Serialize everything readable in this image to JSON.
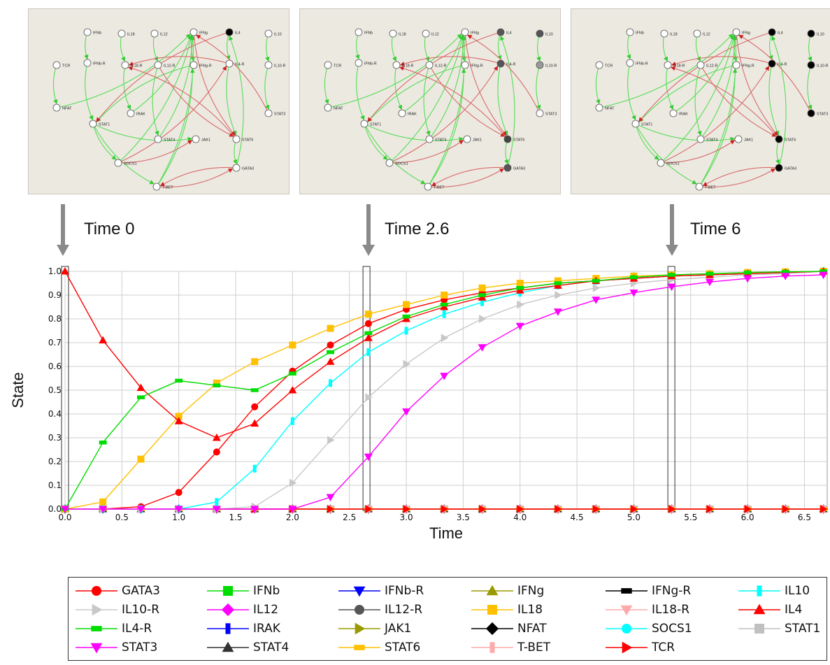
{
  "panels": [
    {
      "time_label": "Time 0",
      "active_nodes": {
        "IL4": "#000000"
      }
    },
    {
      "time_label": "Time 2.6",
      "active_nodes": {
        "IL4": "#555555",
        "IL10": "#555555",
        "IL4-R": "#555555",
        "IL10-R": "#999999",
        "STAT6": "#444444",
        "GATA3": "#555555"
      }
    },
    {
      "time_label": "Time 6",
      "active_nodes": {
        "IL4": "#000000",
        "IL10": "#000000",
        "IL4-R": "#000000",
        "IL10-R": "#000000",
        "STAT3": "#000000",
        "STAT6": "#000000",
        "GATA3": "#000000"
      }
    }
  ],
  "network": {
    "nodes": [
      "IFNb",
      "IL18",
      "IL12",
      "IFNg",
      "IL4",
      "IL10",
      "TCR",
      "IFNb-R",
      "IL18-R",
      "IL12-R",
      "IFNg-R",
      "IL4-R",
      "IL10-R",
      "NFAT",
      "IRAK",
      "STAT3",
      "STAT1",
      "STAT4",
      "JAK1",
      "STAT6",
      "SOCS1",
      "GATA3",
      "T-BET"
    ],
    "node_labels": {
      "IFNb": "IFNb",
      "IL18": "IL18",
      "IL12": "IL12",
      "IFNg": "IFNg",
      "IL4": "IL4",
      "IL10": "IL10",
      "TCR": "TCR",
      "IFNb-R": "IFNb-R",
      "IL18-R": "IL18-R",
      "IL12-R": "IL12-R",
      "IFNg-R": "IFNg-R",
      "IL4-R": "IL4-R",
      "IL10-R": "IL10-R",
      "NFAT": "NFAT",
      "IRAK": "IRAK",
      "STAT3": "STAT3",
      "STAT1": "STAT1",
      "STAT4": "STAT4",
      "JAK1": "JAK1",
      "STAT6": "STAT6",
      "SOCS1": "SOCS1",
      "GATA3": "GATA3",
      "T-BET": "T-BET"
    },
    "activating_edges": [
      [
        "IFNb",
        "IFNb-R"
      ],
      [
        "IL18",
        "IL18-R"
      ],
      [
        "IL12",
        "IL12-R"
      ],
      [
        "IFNg",
        "IFNg-R"
      ],
      [
        "IL4",
        "IL4-R"
      ],
      [
        "IL10",
        "IL10-R"
      ],
      [
        "TCR",
        "NFAT"
      ],
      [
        "IFNb-R",
        "STAT1"
      ],
      [
        "IL18-R",
        "IRAK"
      ],
      [
        "IL12-R",
        "STAT4"
      ],
      [
        "IFNg-R",
        "STAT1"
      ],
      [
        "IL4-R",
        "STAT6"
      ],
      [
        "IL10-R",
        "STAT3"
      ],
      [
        "STAT1",
        "SOCS1"
      ],
      [
        "STAT1",
        "T-BET"
      ],
      [
        "STAT4",
        "IFNg"
      ],
      [
        "STAT6",
        "GATA3"
      ],
      [
        "T-BET",
        "IFNg"
      ],
      [
        "IRAK",
        "IFNg"
      ],
      [
        "NFAT",
        "IFNg"
      ],
      [
        "STAT1",
        "JAK1"
      ],
      [
        "GATA3",
        "IL4"
      ],
      [
        "T-BET",
        "IFNg-R"
      ],
      [
        "SOCS1",
        "IFNg"
      ]
    ],
    "inhibiting_edges": [
      [
        "IFNg",
        "STAT6"
      ],
      [
        "IL4",
        "STAT1"
      ],
      [
        "IL4-R",
        "IL18-R"
      ],
      [
        "GATA3",
        "T-BET"
      ],
      [
        "T-BET",
        "GATA3"
      ],
      [
        "SOCS1",
        "JAK1"
      ],
      [
        "SOCS1",
        "IL4-R"
      ],
      [
        "IL12-R",
        "STAT6"
      ],
      [
        "STAT6",
        "IL18-R"
      ],
      [
        "STAT3",
        "IFNg"
      ]
    ]
  },
  "chart_data": {
    "type": "line",
    "xlabel": "Time",
    "ylabel": "State",
    "xlim": [
      0,
      6.7
    ],
    "ylim": [
      0,
      1.0
    ],
    "x_ticks": [
      "0.0",
      "0.5",
      "1.0",
      "1.5",
      "2.0",
      "2.5",
      "3.0",
      "3.5",
      "4.0",
      "4.5",
      "5.0",
      "5.5",
      "6.0",
      "6.5"
    ],
    "y_ticks": [
      "0.0",
      "0.1",
      "0.2",
      "0.3",
      "0.4",
      "0.5",
      "0.6",
      "0.7",
      "0.8",
      "0.9",
      "1.0"
    ],
    "grid": true,
    "x": [
      0,
      0.333,
      0.667,
      1.0,
      1.333,
      1.667,
      2.0,
      2.333,
      2.667,
      3.0,
      3.333,
      3.667,
      4.0,
      4.333,
      4.667,
      5.0,
      5.333,
      5.667,
      6.0,
      6.333,
      6.667
    ],
    "highlight_times": [
      0,
      2.65,
      5.33
    ],
    "series": [
      {
        "name": "GATA3",
        "color": "#ff0000",
        "marker": "circle",
        "values": [
          0,
          0,
          0.01,
          0.07,
          0.24,
          0.43,
          0.58,
          0.69,
          0.78,
          0.84,
          0.88,
          0.91,
          0.93,
          0.95,
          0.96,
          0.97,
          0.98,
          0.985,
          0.99,
          0.995,
          1.0
        ]
      },
      {
        "name": "IFNb",
        "color": "#00dd00",
        "marker": "square",
        "values": [
          0,
          0,
          0,
          0,
          0,
          0,
          0,
          0,
          0,
          0,
          0,
          0,
          0,
          0,
          0,
          0,
          0,
          0,
          0,
          0,
          0
        ]
      },
      {
        "name": "IFNb-R",
        "color": "#0000ff",
        "marker": "triangle-down",
        "values": [
          0,
          0,
          0,
          0,
          0,
          0,
          0,
          0,
          0,
          0,
          0,
          0,
          0,
          0,
          0,
          0,
          0,
          0,
          0,
          0,
          0
        ]
      },
      {
        "name": "IFNg",
        "color": "#999900",
        "marker": "triangle-up",
        "values": [
          0,
          0,
          0,
          0,
          0,
          0,
          0,
          0,
          0,
          0,
          0,
          0,
          0,
          0,
          0,
          0,
          0,
          0,
          0,
          0,
          0
        ]
      },
      {
        "name": "IFNg-R",
        "color": "#000000",
        "marker": "dash",
        "values": [
          0,
          0,
          0,
          0,
          0,
          0,
          0,
          0,
          0,
          0,
          0,
          0,
          0,
          0,
          0,
          0,
          0,
          0,
          0,
          0,
          0
        ]
      },
      {
        "name": "IL10",
        "color": "#00ffff",
        "marker": "tick",
        "values": [
          0,
          0,
          0,
          0,
          0.03,
          0.17,
          0.37,
          0.53,
          0.66,
          0.75,
          0.82,
          0.87,
          0.91,
          0.94,
          0.96,
          0.97,
          0.98,
          0.985,
          0.99,
          0.995,
          1.0
        ]
      },
      {
        "name": "IL10-R",
        "color": "#c8c8c8",
        "marker": "triangle-right",
        "values": [
          0,
          0,
          0,
          0,
          0,
          0.01,
          0.11,
          0.29,
          0.47,
          0.61,
          0.72,
          0.8,
          0.86,
          0.9,
          0.93,
          0.95,
          0.965,
          0.975,
          0.985,
          0.99,
          1.0
        ]
      },
      {
        "name": "IL12",
        "color": "#ff00ff",
        "marker": "diamond",
        "values": [
          0,
          0,
          0,
          0,
          0,
          0,
          0,
          0,
          0,
          0,
          0,
          0,
          0,
          0,
          0,
          0,
          0,
          0,
          0,
          0,
          0
        ]
      },
      {
        "name": "IL12-R",
        "color": "#555555",
        "marker": "circle",
        "values": [
          0,
          0,
          0,
          0,
          0,
          0,
          0,
          0,
          0,
          0,
          0,
          0,
          0,
          0,
          0,
          0,
          0,
          0,
          0,
          0,
          0
        ]
      },
      {
        "name": "IL18",
        "color": "#ffc000",
        "marker": "square",
        "values": [
          0,
          0.03,
          0.21,
          0.39,
          0.53,
          0.62,
          0.69,
          0.76,
          0.82,
          0.86,
          0.9,
          0.93,
          0.95,
          0.96,
          0.97,
          0.98,
          0.985,
          0.99,
          0.995,
          0.998,
          1.0
        ]
      },
      {
        "name": "IL18-R",
        "color": "#ffaaaa",
        "marker": "triangle-down",
        "values": [
          0,
          0,
          0,
          0,
          0,
          0,
          0,
          0,
          0,
          0,
          0,
          0,
          0,
          0,
          0,
          0,
          0,
          0,
          0,
          0,
          0
        ]
      },
      {
        "name": "IL4",
        "color": "#ff0000",
        "marker": "triangle-up",
        "values": [
          1.0,
          0.71,
          0.51,
          0.37,
          0.3,
          0.36,
          0.5,
          0.62,
          0.72,
          0.8,
          0.85,
          0.89,
          0.92,
          0.94,
          0.96,
          0.97,
          0.98,
          0.985,
          0.99,
          0.995,
          1.0
        ]
      },
      {
        "name": "IL4-R",
        "color": "#00dd00",
        "marker": "dash",
        "values": [
          0,
          0.28,
          0.47,
          0.54,
          0.52,
          0.5,
          0.57,
          0.66,
          0.74,
          0.81,
          0.86,
          0.9,
          0.93,
          0.95,
          0.96,
          0.975,
          0.985,
          0.99,
          0.995,
          0.998,
          1.0
        ]
      },
      {
        "name": "IRAK",
        "color": "#0000ff",
        "marker": "tick",
        "values": [
          0,
          0,
          0,
          0,
          0,
          0,
          0,
          0,
          0,
          0,
          0,
          0,
          0,
          0,
          0,
          0,
          0,
          0,
          0,
          0,
          0
        ]
      },
      {
        "name": "JAK1",
        "color": "#999900",
        "marker": "triangle-right",
        "values": [
          0,
          0,
          0,
          0,
          0,
          0,
          0,
          0,
          0,
          0,
          0,
          0,
          0,
          0,
          0,
          0,
          0,
          0,
          0,
          0,
          0
        ]
      },
      {
        "name": "NFAT",
        "color": "#000000",
        "marker": "diamond",
        "values": [
          0,
          0,
          0,
          0,
          0,
          0,
          0,
          0,
          0,
          0,
          0,
          0,
          0,
          0,
          0,
          0,
          0,
          0,
          0,
          0,
          0
        ]
      },
      {
        "name": "SOCS1",
        "color": "#00ffff",
        "marker": "circle",
        "values": [
          0,
          0,
          0,
          0,
          0,
          0,
          0,
          0,
          0,
          0,
          0,
          0,
          0,
          0,
          0,
          0,
          0,
          0,
          0,
          0,
          0
        ]
      },
      {
        "name": "STAT1",
        "color": "#c0c0c0",
        "marker": "square",
        "values": [
          0,
          0,
          0,
          0,
          0,
          0,
          0,
          0,
          0,
          0,
          0,
          0,
          0,
          0,
          0,
          0,
          0,
          0,
          0,
          0,
          0
        ]
      },
      {
        "name": "STAT3",
        "color": "#ff00ff",
        "marker": "triangle-down",
        "values": [
          0,
          0,
          0,
          0,
          0,
          0,
          0,
          0.05,
          0.22,
          0.41,
          0.56,
          0.68,
          0.77,
          0.83,
          0.88,
          0.91,
          0.935,
          0.955,
          0.97,
          0.98,
          0.985
        ]
      },
      {
        "name": "STAT4",
        "color": "#333333",
        "marker": "triangle-up",
        "values": [
          0,
          0,
          0,
          0,
          0,
          0,
          0,
          0,
          0,
          0,
          0,
          0,
          0,
          0,
          0,
          0,
          0,
          0,
          0,
          0,
          0
        ]
      },
      {
        "name": "STAT6",
        "color": "#ffc000",
        "marker": "dash",
        "values": [
          0,
          0,
          0,
          0,
          0,
          0,
          0,
          0,
          0,
          0,
          0,
          0,
          0,
          0,
          0,
          0,
          0,
          0,
          0,
          0,
          0
        ]
      },
      {
        "name": "T-BET",
        "color": "#ffaaaa",
        "marker": "tick",
        "values": [
          0,
          0,
          0,
          0,
          0,
          0,
          0,
          0,
          0,
          0,
          0,
          0,
          0,
          0,
          0,
          0,
          0,
          0,
          0,
          0,
          0
        ]
      },
      {
        "name": "TCR",
        "color": "#ff0000",
        "marker": "triangle-right",
        "values": [
          0,
          0,
          0,
          0,
          0,
          0,
          0,
          0,
          0,
          0,
          0,
          0,
          0,
          0,
          0,
          0,
          0,
          0,
          0,
          0,
          0
        ]
      }
    ]
  }
}
